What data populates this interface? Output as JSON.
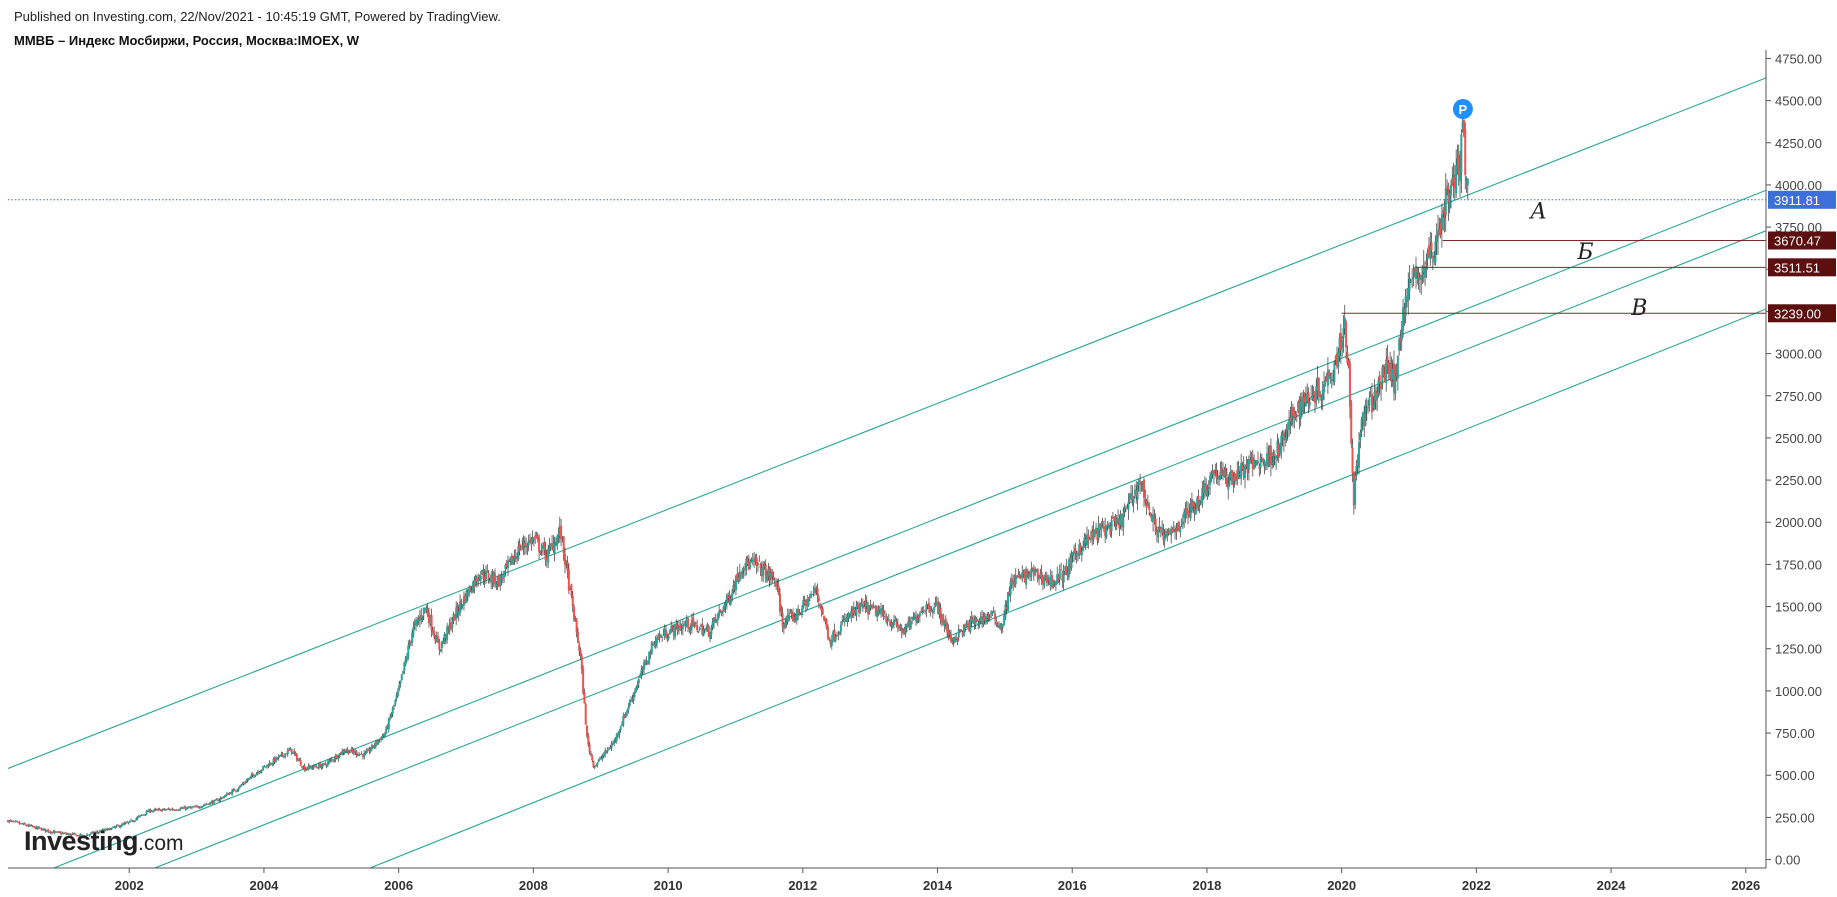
{
  "header": {
    "published": "Published on Investing.com, 22/Nov/2021 - 10:45:19 GMT, Powered by TradingView.",
    "symbol": "ММВБ – Индекс Мосбиржи, Россия, Москва:IMOEX, W"
  },
  "logo": {
    "brand": "Investing",
    "domain": ".com"
  },
  "chart_data": {
    "type": "candlestick",
    "timeframe": "W",
    "x_ticks": [
      "2002",
      "2004",
      "2006",
      "2008",
      "2010",
      "2012",
      "2014",
      "2016",
      "2018",
      "2020",
      "2022",
      "2024",
      "2026"
    ],
    "y_ticks": [
      "0.00",
      "250.00",
      "500.00",
      "750.00",
      "1000.00",
      "1250.00",
      "1500.00",
      "1750.00",
      "2000.00",
      "2250.00",
      "2500.00",
      "2750.00",
      "3000.00",
      "3250.00",
      "3500.00",
      "3750.00",
      "4000.00",
      "4250.00",
      "4500.00",
      "4750.00"
    ],
    "ylim": [
      -50,
      4800
    ],
    "xlim": [
      2000.2,
      2026.3
    ],
    "price_path": [
      [
        2000.2,
        230
      ],
      [
        2000.5,
        200
      ],
      [
        2000.9,
        160
      ],
      [
        2001.3,
        140
      ],
      [
        2001.7,
        180
      ],
      [
        2002.0,
        220
      ],
      [
        2002.3,
        290
      ],
      [
        2002.7,
        300
      ],
      [
        2003.0,
        310
      ],
      [
        2003.3,
        350
      ],
      [
        2003.6,
        420
      ],
      [
        2003.9,
        520
      ],
      [
        2004.2,
        600
      ],
      [
        2004.4,
        650
      ],
      [
        2004.6,
        540
      ],
      [
        2004.9,
        560
      ],
      [
        2005.2,
        650
      ],
      [
        2005.5,
        620
      ],
      [
        2005.8,
        750
      ],
      [
        2006.0,
        1000
      ],
      [
        2006.2,
        1350
      ],
      [
        2006.4,
        1500
      ],
      [
        2006.6,
        1250
      ],
      [
        2006.9,
        1500
      ],
      [
        2007.2,
        1700
      ],
      [
        2007.5,
        1650
      ],
      [
        2007.8,
        1850
      ],
      [
        2008.0,
        1900
      ],
      [
        2008.2,
        1800
      ],
      [
        2008.4,
        1950
      ],
      [
        2008.5,
        1700
      ],
      [
        2008.7,
        1200
      ],
      [
        2008.8,
        700
      ],
      [
        2008.9,
        550
      ],
      [
        2009.0,
        600
      ],
      [
        2009.2,
        700
      ],
      [
        2009.5,
        1000
      ],
      [
        2009.8,
        1300
      ],
      [
        2010.0,
        1350
      ],
      [
        2010.3,
        1400
      ],
      [
        2010.6,
        1350
      ],
      [
        2010.9,
        1550
      ],
      [
        2011.1,
        1750
      ],
      [
        2011.3,
        1750
      ],
      [
        2011.6,
        1650
      ],
      [
        2011.7,
        1400
      ],
      [
        2011.9,
        1450
      ],
      [
        2012.2,
        1600
      ],
      [
        2012.4,
        1300
      ],
      [
        2012.7,
        1450
      ],
      [
        2012.9,
        1500
      ],
      [
        2013.2,
        1450
      ],
      [
        2013.5,
        1350
      ],
      [
        2013.8,
        1500
      ],
      [
        2014.0,
        1500
      ],
      [
        2014.2,
        1300
      ],
      [
        2014.5,
        1400
      ],
      [
        2014.8,
        1450
      ],
      [
        2014.95,
        1380
      ],
      [
        2015.1,
        1650
      ],
      [
        2015.4,
        1700
      ],
      [
        2015.7,
        1650
      ],
      [
        2015.9,
        1700
      ],
      [
        2016.1,
        1850
      ],
      [
        2016.4,
        1950
      ],
      [
        2016.7,
        1990
      ],
      [
        2016.9,
        2150
      ],
      [
        2017.0,
        2250
      ],
      [
        2017.2,
        2000
      ],
      [
        2017.4,
        1900
      ],
      [
        2017.6,
        2000
      ],
      [
        2017.9,
        2150
      ],
      [
        2018.1,
        2300
      ],
      [
        2018.3,
        2250
      ],
      [
        2018.5,
        2300
      ],
      [
        2018.7,
        2350
      ],
      [
        2018.9,
        2380
      ],
      [
        2019.1,
        2450
      ],
      [
        2019.3,
        2650
      ],
      [
        2019.5,
        2750
      ],
      [
        2019.7,
        2800
      ],
      [
        2019.9,
        2950
      ],
      [
        2020.0,
        3100
      ],
      [
        2020.05,
        3200
      ],
      [
        2020.1,
        2900
      ],
      [
        2020.18,
        2150
      ],
      [
        2020.3,
        2600
      ],
      [
        2020.5,
        2750
      ],
      [
        2020.7,
        2950
      ],
      [
        2020.8,
        2800
      ],
      [
        2020.9,
        3250
      ],
      [
        2021.0,
        3400
      ],
      [
        2021.2,
        3500
      ],
      [
        2021.4,
        3650
      ],
      [
        2021.5,
        3850
      ],
      [
        2021.7,
        4050
      ],
      [
        2021.8,
        4290
      ],
      [
        2021.85,
        4100
      ],
      [
        2021.88,
        3912
      ]
    ],
    "last_price": "3911.81",
    "last_price_value": 3911.81,
    "horizontal_levels": [
      {
        "label": "3670.47",
        "value": 3670.47,
        "x_start": 2021.5
      },
      {
        "label": "3511.51",
        "value": 3511.51,
        "x_start": 2021.1
      },
      {
        "label": "3239.00",
        "value": 3239.0,
        "x_start": 2020.0
      }
    ],
    "channel_lines": [
      {
        "x1": 2000.2,
        "y1": 540,
        "x2": 2027.1,
        "y2": 4760
      },
      {
        "x1": 2000.5,
        "y1": -110,
        "x2": 2028.4,
        "y2": 4300
      },
      {
        "x1": 2002.0,
        "y1": -110,
        "x2": 2028.4,
        "y2": 4060
      },
      {
        "x1": 2005.2,
        "y1": -110,
        "x2": 2028.4,
        "y2": 3600
      }
    ],
    "marker": {
      "label": "P",
      "x": 2021.8,
      "value": 4450
    },
    "annotations": [
      {
        "text": "А",
        "x": 2022.8,
        "value": 3800
      },
      {
        "text": "Б",
        "x": 2023.5,
        "value": 3560
      },
      {
        "text": "В",
        "x": 2024.3,
        "value": 3230
      }
    ],
    "colors": {
      "up": "#26a69a",
      "down": "#ef5350",
      "channel": "#26a69a",
      "last_price_tag": "#3d6fd8",
      "level_tag": "#5c0f0f",
      "level_line": "#7a2a2a",
      "marker": "#1e90ff"
    },
    "grid": false,
    "legend": "none"
  }
}
